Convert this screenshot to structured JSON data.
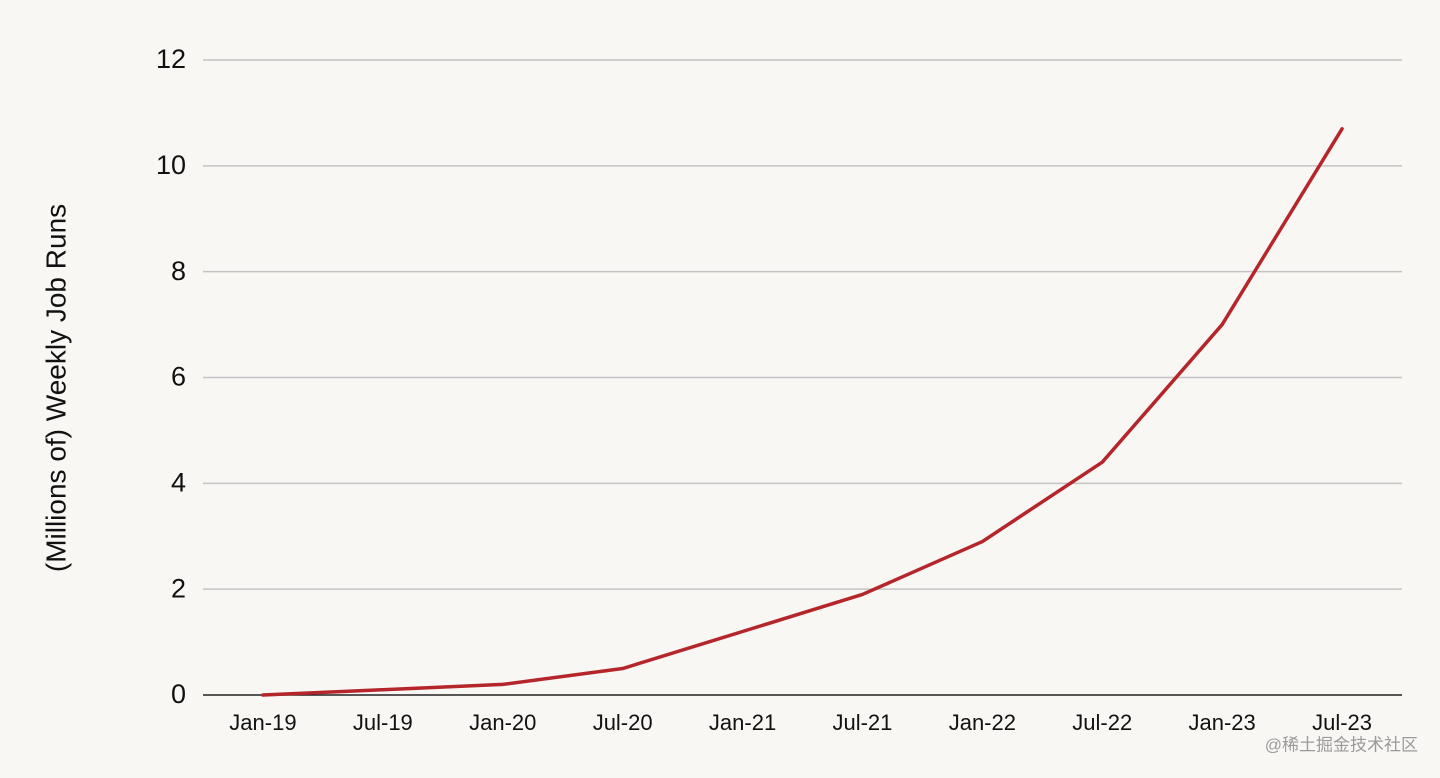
{
  "chart_data": {
    "type": "line",
    "y_axis_label": "(Millions of) Weekly Job Runs",
    "categories": [
      "Jan-19",
      "Jul-19",
      "Jan-20",
      "Jul-20",
      "Jan-21",
      "Jul-21",
      "Jan-22",
      "Jul-22",
      "Jan-23",
      "Jul-23"
    ],
    "values": [
      0,
      0.1,
      0.2,
      0.5,
      1.2,
      1.9,
      2.9,
      4.4,
      7.0,
      10.7
    ],
    "color": "#b5262b",
    "ylim": [
      0,
      12
    ],
    "yticks": [
      0,
      2,
      4,
      6,
      8,
      10,
      12
    ],
    "grid": true,
    "watermark": "@稀土掘金技术社区"
  }
}
